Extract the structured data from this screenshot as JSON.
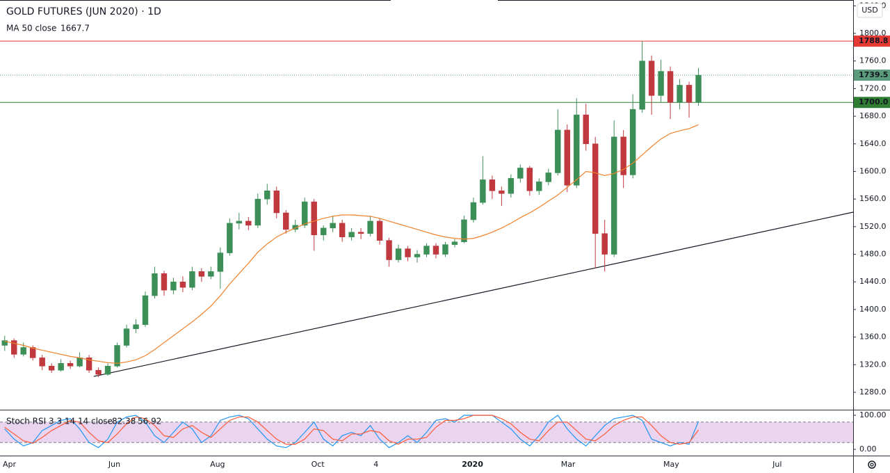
{
  "chart_data": [
    {
      "type": "candlestick",
      "title": "GOLD FUTURES (JUN 2020) · 1D",
      "currency": "USD",
      "up_color": "#3d8f58",
      "down_color": "#c0393f",
      "ohlc": [
        [
          1348,
          1362,
          1340,
          1355
        ],
        [
          1355,
          1358,
          1330,
          1335
        ],
        [
          1335,
          1352,
          1332,
          1345
        ],
        [
          1345,
          1348,
          1326,
          1330
        ],
        [
          1330,
          1334,
          1312,
          1318
        ],
        [
          1318,
          1322,
          1308,
          1312
        ],
        [
          1312,
          1328,
          1310,
          1322
        ],
        [
          1322,
          1326,
          1314,
          1318
        ],
        [
          1318,
          1338,
          1316,
          1330
        ],
        [
          1330,
          1334,
          1308,
          1312
        ],
        [
          1312,
          1316,
          1302,
          1306
        ],
        [
          1306,
          1322,
          1304,
          1318
        ],
        [
          1318,
          1352,
          1316,
          1348
        ],
        [
          1348,
          1378,
          1345,
          1372
        ],
        [
          1372,
          1386,
          1366,
          1378
        ],
        [
          1378,
          1426,
          1375,
          1420
        ],
        [
          1420,
          1462,
          1416,
          1452
        ],
        [
          1452,
          1456,
          1420,
          1428
        ],
        [
          1428,
          1446,
          1422,
          1440
        ],
        [
          1440,
          1448,
          1425,
          1432
        ],
        [
          1432,
          1462,
          1428,
          1455
        ],
        [
          1455,
          1460,
          1440,
          1448
        ],
        [
          1448,
          1462,
          1444,
          1455
        ],
        [
          1455,
          1490,
          1430,
          1482
        ],
        [
          1482,
          1532,
          1478,
          1525
        ],
        [
          1525,
          1540,
          1516,
          1528
        ],
        [
          1528,
          1534,
          1515,
          1522
        ],
        [
          1522,
          1568,
          1518,
          1560
        ],
        [
          1560,
          1582,
          1552,
          1572
        ],
        [
          1572,
          1578,
          1532,
          1540
        ],
        [
          1540,
          1544,
          1510,
          1516
        ],
        [
          1516,
          1530,
          1512,
          1522
        ],
        [
          1522,
          1562,
          1518,
          1556
        ],
        [
          1556,
          1560,
          1485,
          1508
        ],
        [
          1508,
          1522,
          1500,
          1518
        ],
        [
          1518,
          1536,
          1512,
          1525
        ],
        [
          1525,
          1530,
          1498,
          1505
        ],
        [
          1505,
          1518,
          1500,
          1512
        ],
        [
          1512,
          1518,
          1502,
          1510
        ],
        [
          1510,
          1536,
          1506,
          1528
        ],
        [
          1528,
          1532,
          1494,
          1500
        ],
        [
          1500,
          1504,
          1462,
          1472
        ],
        [
          1472,
          1494,
          1468,
          1488
        ],
        [
          1488,
          1492,
          1470,
          1476
        ],
        [
          1476,
          1486,
          1468,
          1480
        ],
        [
          1480,
          1496,
          1476,
          1492
        ],
        [
          1492,
          1496,
          1474,
          1480
        ],
        [
          1480,
          1498,
          1476,
          1494
        ],
        [
          1494,
          1502,
          1490,
          1498
        ],
        [
          1498,
          1536,
          1496,
          1530
        ],
        [
          1530,
          1562,
          1526,
          1555
        ],
        [
          1555,
          1622,
          1552,
          1588
        ],
        [
          1588,
          1594,
          1560,
          1572
        ],
        [
          1572,
          1578,
          1550,
          1568
        ],
        [
          1568,
          1596,
          1562,
          1590
        ],
        [
          1590,
          1610,
          1584,
          1605
        ],
        [
          1605,
          1608,
          1565,
          1572
        ],
        [
          1572,
          1590,
          1566,
          1585
        ],
        [
          1585,
          1604,
          1580,
          1598
        ],
        [
          1598,
          1690,
          1594,
          1660
        ],
        [
          1660,
          1668,
          1570,
          1580
        ],
        [
          1580,
          1706,
          1576,
          1682
        ],
        [
          1682,
          1698,
          1630,
          1640
        ],
        [
          1640,
          1650,
          1460,
          1510
        ],
        [
          1510,
          1530,
          1455,
          1480
        ],
        [
          1480,
          1674,
          1476,
          1650
        ],
        [
          1650,
          1660,
          1576,
          1595
        ],
        [
          1595,
          1712,
          1590,
          1690
        ],
        [
          1690,
          1788.8,
          1685,
          1760
        ],
        [
          1760,
          1768,
          1682,
          1710
        ],
        [
          1710,
          1762,
          1700,
          1745
        ],
        [
          1745,
          1752,
          1676,
          1700
        ],
        [
          1700,
          1734,
          1690,
          1725
        ],
        [
          1725,
          1730,
          1678,
          1700
        ],
        [
          1700,
          1750,
          1695,
          1739.5
        ]
      ],
      "series": [
        {
          "name": "MA 50 close",
          "color": "#f0812a",
          "values": [
            1354,
            1351,
            1348,
            1344,
            1341,
            1338,
            1335,
            1332,
            1330,
            1327,
            1325,
            1323,
            1322,
            1324,
            1327,
            1333,
            1342,
            1352,
            1362,
            1372,
            1382,
            1393,
            1405,
            1420,
            1437,
            1452,
            1467,
            1483,
            1495,
            1505,
            1512,
            1518,
            1524,
            1528,
            1532,
            1535,
            1537,
            1537,
            1536,
            1535,
            1532,
            1528,
            1524,
            1520,
            1516,
            1512,
            1508,
            1505,
            1503,
            1502,
            1503,
            1507,
            1512,
            1518,
            1525,
            1533,
            1540,
            1548,
            1557,
            1566,
            1577,
            1588,
            1600,
            1598,
            1594,
            1597,
            1603,
            1612,
            1624,
            1636,
            1647,
            1655,
            1659,
            1662,
            1667.7
          ]
        }
      ],
      "trendline": {
        "x": [
          9.5,
          90.5
        ],
        "y": [
          1303,
          1541
        ],
        "color": "#131722"
      },
      "hlines": [
        {
          "value": 1788.8,
          "label": "1788.8",
          "color": "#e53935",
          "style": "solid"
        },
        {
          "value": 1739.5,
          "label": "1739.5",
          "color": "#5b9a7a",
          "style": "dotted"
        },
        {
          "value": 1700,
          "label": "1700.0",
          "color": "#2e7d32",
          "style": "solid"
        }
      ],
      "ylim": [
        1255.8,
        1848.4
      ],
      "yticks": [
        {
          "value": 1280,
          "label": "1280.0"
        },
        {
          "value": 1320,
          "label": "1320.0"
        },
        {
          "value": 1360,
          "label": "1360.0"
        },
        {
          "value": 1400,
          "label": "1400.0"
        },
        {
          "value": 1440,
          "label": "1440.0"
        },
        {
          "value": 1480,
          "label": "1480.0"
        },
        {
          "value": 1520,
          "label": "1520.0"
        },
        {
          "value": 1560,
          "label": "1560.0"
        },
        {
          "value": 1600,
          "label": "1600.0"
        },
        {
          "value": 1640,
          "label": "1640.0"
        },
        {
          "value": 1680,
          "label": "1680.0"
        },
        {
          "value": 1720,
          "label": "1720.0"
        },
        {
          "value": 1760,
          "label": "1760.0"
        },
        {
          "value": 1800,
          "label": "1800.0"
        },
        {
          "value": 1840,
          "label": "1840.0"
        }
      ],
      "xlim": [
        -0.5,
        90.5
      ],
      "xticks": [
        {
          "value": 0.5,
          "label": "Apr"
        },
        {
          "value": 11.7,
          "label": "Jun"
        },
        {
          "value": 22.7,
          "label": "Aug"
        },
        {
          "value": 33.4,
          "label": "Oct"
        },
        {
          "value": 39.6,
          "label": "4"
        },
        {
          "value": 49.9,
          "label": "2020"
        },
        {
          "value": 60.1,
          "label": "Mar"
        },
        {
          "value": 71.1,
          "label": "May"
        },
        {
          "value": 82.4,
          "label": "Jul"
        }
      ]
    },
    {
      "type": "line",
      "title": "Stoch RSI 3 3 14 14 close",
      "series": [
        {
          "color": "#2196f3",
          "values": [
            60,
            30,
            10,
            20,
            55,
            70,
            85,
            90,
            60,
            20,
            5,
            30,
            80,
            95,
            100,
            80,
            40,
            20,
            50,
            80,
            60,
            20,
            40,
            85,
            95,
            100,
            90,
            60,
            30,
            10,
            5,
            20,
            50,
            80,
            30,
            10,
            40,
            50,
            40,
            70,
            30,
            5,
            20,
            40,
            20,
            50,
            85,
            90,
            80,
            100,
            100,
            100,
            100,
            80,
            60,
            30,
            10,
            40,
            80,
            100,
            60,
            30,
            10,
            40,
            70,
            90,
            95,
            100,
            85,
            30,
            20,
            10,
            20,
            15,
            82.38
          ]
        },
        {
          "color": "#ff5a36",
          "values": [
            65,
            45,
            25,
            18,
            35,
            55,
            70,
            85,
            80,
            50,
            25,
            20,
            45,
            75,
            95,
            90,
            70,
            40,
            35,
            60,
            70,
            50,
            35,
            60,
            85,
            95,
            95,
            80,
            55,
            30,
            15,
            15,
            30,
            60,
            55,
            30,
            25,
            45,
            45,
            55,
            50,
            25,
            15,
            30,
            30,
            35,
            65,
            85,
            85,
            90,
            100,
            100,
            100,
            90,
            75,
            50,
            30,
            25,
            55,
            80,
            80,
            55,
            30,
            25,
            45,
            70,
            85,
            95,
            95,
            70,
            40,
            20,
            15,
            20,
            56.92
          ]
        }
      ],
      "bands": [
        80,
        20
      ],
      "band_color": "#9c27b0",
      "ylim": [
        -18.4,
        114.3
      ],
      "yticks": [
        {
          "value": 100,
          "label": "100.00"
        },
        {
          "value": 0,
          "label": "0.00"
        }
      ],
      "xlim": [
        -0.5,
        90.5
      ]
    }
  ]
}
